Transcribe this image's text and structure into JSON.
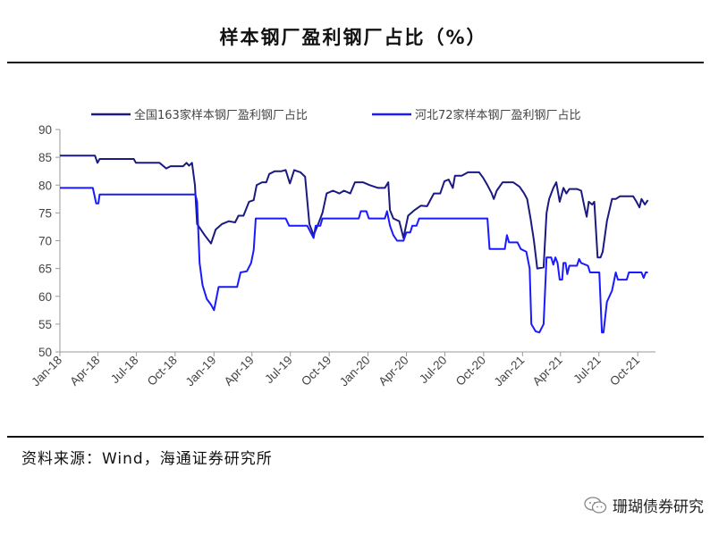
{
  "title": "样本钢厂盈利钢厂占比（%）",
  "source": "资料来源：Wind，海通证券研究所",
  "watermark": {
    "text": "珊瑚债券研究",
    "icon": "wechat-icon"
  },
  "colors": {
    "series1": "#1a1a80",
    "series2": "#1a1aff"
  },
  "chart_data": {
    "type": "line",
    "xlabel": "",
    "ylabel": "",
    "ylim": [
      50,
      90
    ],
    "yticks": [
      50,
      55,
      60,
      65,
      70,
      75,
      80,
      85,
      90
    ],
    "xlim": [
      "2018-01-01",
      "2021-11-12"
    ],
    "xticks": [
      "Jan-18",
      "Apr-18",
      "Jul-18",
      "Oct-18",
      "Jan-19",
      "Apr-19",
      "Jul-19",
      "Oct-19",
      "Jan-20",
      "Apr-20",
      "Jul-20",
      "Oct-20",
      "Jan-21",
      "Apr-21",
      "Jul-21",
      "Oct-21"
    ],
    "xtick_dates": [
      "2018-01-01",
      "2018-04-01",
      "2018-07-01",
      "2018-10-01",
      "2019-01-01",
      "2019-04-01",
      "2019-07-01",
      "2019-10-01",
      "2020-01-01",
      "2020-04-01",
      "2020-07-01",
      "2020-10-01",
      "2021-01-01",
      "2021-04-01",
      "2021-07-01",
      "2021-10-01"
    ],
    "grid": false,
    "legend": "top",
    "series": [
      {
        "name": "全国163家样本钢厂盈利钢厂占比",
        "points": [
          [
            "2018-01-01",
            85.3
          ],
          [
            "2018-03-25",
            85.3
          ],
          [
            "2018-03-31",
            84.0
          ],
          [
            "2018-04-05",
            84.7
          ],
          [
            "2018-06-25",
            84.7
          ],
          [
            "2018-06-30",
            84.0
          ],
          [
            "2018-08-25",
            84.0
          ],
          [
            "2018-09-10",
            83.0
          ],
          [
            "2018-09-20",
            83.4
          ],
          [
            "2018-10-20",
            83.4
          ],
          [
            "2018-10-28",
            84.0
          ],
          [
            "2018-11-03",
            83.5
          ],
          [
            "2018-11-10",
            84.0
          ],
          [
            "2018-11-17",
            80.0
          ],
          [
            "2018-11-22",
            73.0
          ],
          [
            "2018-12-10",
            71.0
          ],
          [
            "2018-12-25",
            69.5
          ],
          [
            "2019-01-05",
            72.0
          ],
          [
            "2019-01-20",
            73.0
          ],
          [
            "2019-02-05",
            73.5
          ],
          [
            "2019-02-20",
            73.3
          ],
          [
            "2019-02-28",
            74.5
          ],
          [
            "2019-03-12",
            74.5
          ],
          [
            "2019-03-25",
            77.0
          ],
          [
            "2019-04-05",
            77.3
          ],
          [
            "2019-04-12",
            80.0
          ],
          [
            "2019-04-25",
            80.5
          ],
          [
            "2019-05-05",
            80.5
          ],
          [
            "2019-05-12",
            82.0
          ],
          [
            "2019-05-25",
            82.5
          ],
          [
            "2019-06-10",
            82.5
          ],
          [
            "2019-06-20",
            82.7
          ],
          [
            "2019-06-30",
            80.3
          ],
          [
            "2019-07-10",
            82.7
          ],
          [
            "2019-07-25",
            82.3
          ],
          [
            "2019-08-05",
            81.5
          ],
          [
            "2019-08-15",
            73.0
          ],
          [
            "2019-08-25",
            71.0
          ],
          [
            "2019-09-05",
            73.0
          ],
          [
            "2019-09-15",
            75.0
          ],
          [
            "2019-09-25",
            78.5
          ],
          [
            "2019-10-10",
            79.0
          ],
          [
            "2019-10-25",
            78.5
          ],
          [
            "2019-11-05",
            79.0
          ],
          [
            "2019-11-20",
            78.5
          ],
          [
            "2019-12-01",
            80.5
          ],
          [
            "2019-12-20",
            80.5
          ],
          [
            "2020-01-05",
            80.0
          ],
          [
            "2020-01-25",
            79.5
          ],
          [
            "2020-02-10",
            79.5
          ],
          [
            "2020-02-18",
            80.5
          ],
          [
            "2020-02-22",
            75.5
          ],
          [
            "2020-03-01",
            74.0
          ],
          [
            "2020-03-15",
            73.5
          ],
          [
            "2020-03-25",
            70.5
          ],
          [
            "2020-04-05",
            74.5
          ],
          [
            "2020-04-20",
            75.5
          ],
          [
            "2020-05-05",
            76.3
          ],
          [
            "2020-05-20",
            76.2
          ],
          [
            "2020-06-05",
            78.5
          ],
          [
            "2020-06-20",
            78.5
          ],
          [
            "2020-06-30",
            80.7
          ],
          [
            "2020-07-10",
            81.0
          ],
          [
            "2020-07-20",
            79.5
          ],
          [
            "2020-07-25",
            81.7
          ],
          [
            "2020-08-10",
            81.7
          ],
          [
            "2020-08-25",
            82.3
          ],
          [
            "2020-09-20",
            82.3
          ],
          [
            "2020-09-30",
            81.3
          ],
          [
            "2020-10-10",
            80.0
          ],
          [
            "2020-10-20",
            78.5
          ],
          [
            "2020-10-25",
            77.5
          ],
          [
            "2020-11-01",
            79.0
          ],
          [
            "2020-11-15",
            80.5
          ],
          [
            "2020-12-10",
            80.5
          ],
          [
            "2020-12-25",
            79.7
          ],
          [
            "2021-01-05",
            78.5
          ],
          [
            "2021-01-12",
            77.5
          ],
          [
            "2021-01-20",
            74.0
          ],
          [
            "2021-01-28",
            70.0
          ],
          [
            "2021-02-05",
            65.0
          ],
          [
            "2021-02-20",
            65.2
          ],
          [
            "2021-02-27",
            75.0
          ],
          [
            "2021-03-05",
            77.5
          ],
          [
            "2021-03-15",
            79.5
          ],
          [
            "2021-03-22",
            80.5
          ],
          [
            "2021-03-30",
            77.0
          ],
          [
            "2021-04-08",
            79.5
          ],
          [
            "2021-04-15",
            78.5
          ],
          [
            "2021-04-22",
            79.3
          ],
          [
            "2021-05-10",
            79.3
          ],
          [
            "2021-05-20",
            79.0
          ],
          [
            "2021-05-28",
            76.0
          ],
          [
            "2021-06-02",
            74.3
          ],
          [
            "2021-06-07",
            77.0
          ],
          [
            "2021-06-15",
            76.5
          ],
          [
            "2021-06-20",
            77.0
          ],
          [
            "2021-06-28",
            67.0
          ],
          [
            "2021-07-05",
            67.0
          ],
          [
            "2021-07-10",
            68.0
          ],
          [
            "2021-07-20",
            73.5
          ],
          [
            "2021-08-01",
            77.5
          ],
          [
            "2021-08-10",
            77.5
          ],
          [
            "2021-08-20",
            78.0
          ],
          [
            "2021-09-10",
            78.0
          ],
          [
            "2021-09-20",
            78.0
          ],
          [
            "2021-09-28",
            77.0
          ],
          [
            "2021-10-05",
            76.0
          ],
          [
            "2021-10-10",
            77.5
          ],
          [
            "2021-10-18",
            76.5
          ],
          [
            "2021-10-25",
            77.3
          ]
        ]
      },
      {
        "name": "河北72家样本钢厂盈利钢厂占比",
        "points": [
          [
            "2018-01-01",
            79.5
          ],
          [
            "2018-03-20",
            79.5
          ],
          [
            "2018-03-28",
            76.7
          ],
          [
            "2018-04-02",
            76.7
          ],
          [
            "2018-04-05",
            78.3
          ],
          [
            "2018-11-18",
            78.3
          ],
          [
            "2018-11-22",
            77.0
          ],
          [
            "2018-11-28",
            66.0
          ],
          [
            "2018-12-05",
            62.0
          ],
          [
            "2018-12-15",
            59.5
          ],
          [
            "2018-12-25",
            58.5
          ],
          [
            "2019-01-01",
            57.5
          ],
          [
            "2019-01-05",
            59.0
          ],
          [
            "2019-01-12",
            61.7
          ],
          [
            "2019-02-25",
            61.7
          ],
          [
            "2019-03-05",
            64.3
          ],
          [
            "2019-03-20",
            64.5
          ],
          [
            "2019-03-30",
            66.0
          ],
          [
            "2019-04-05",
            68.3
          ],
          [
            "2019-04-10",
            74.0
          ],
          [
            "2019-06-20",
            74.0
          ],
          [
            "2019-06-28",
            72.7
          ],
          [
            "2019-08-10",
            72.7
          ],
          [
            "2019-08-18",
            71.5
          ],
          [
            "2019-08-25",
            70.5
          ],
          [
            "2019-08-30",
            72.7
          ],
          [
            "2019-09-10",
            72.7
          ],
          [
            "2019-09-15",
            74.0
          ],
          [
            "2019-12-10",
            74.0
          ],
          [
            "2019-12-15",
            75.3
          ],
          [
            "2019-12-28",
            75.3
          ],
          [
            "2020-01-03",
            74.0
          ],
          [
            "2020-02-10",
            74.0
          ],
          [
            "2020-02-15",
            75.3
          ],
          [
            "2020-02-22",
            72.7
          ],
          [
            "2020-03-01",
            71.0
          ],
          [
            "2020-03-10",
            70.0
          ],
          [
            "2020-03-25",
            70.0
          ],
          [
            "2020-04-01",
            71.5
          ],
          [
            "2020-04-10",
            71.5
          ],
          [
            "2020-04-15",
            72.7
          ],
          [
            "2020-04-25",
            72.7
          ],
          [
            "2020-05-01",
            74.0
          ],
          [
            "2020-10-10",
            74.0
          ],
          [
            "2020-10-15",
            68.5
          ],
          [
            "2020-11-20",
            68.5
          ],
          [
            "2020-11-25",
            71.0
          ],
          [
            "2020-11-30",
            69.7
          ],
          [
            "2020-12-20",
            69.7
          ],
          [
            "2020-12-28",
            68.5
          ],
          [
            "2021-01-10",
            68.0
          ],
          [
            "2021-01-18",
            65.0
          ],
          [
            "2021-01-22",
            55.0
          ],
          [
            "2021-02-01",
            53.7
          ],
          [
            "2021-02-10",
            53.5
          ],
          [
            "2021-02-20",
            55.0
          ],
          [
            "2021-02-27",
            67.0
          ],
          [
            "2021-03-10",
            67.0
          ],
          [
            "2021-03-15",
            65.7
          ],
          [
            "2021-03-20",
            67.0
          ],
          [
            "2021-03-25",
            66.0
          ],
          [
            "2021-03-30",
            63.0
          ],
          [
            "2021-04-05",
            63.0
          ],
          [
            "2021-04-08",
            66.0
          ],
          [
            "2021-04-13",
            66.0
          ],
          [
            "2021-04-17",
            64.0
          ],
          [
            "2021-04-22",
            65.5
          ],
          [
            "2021-05-10",
            65.5
          ],
          [
            "2021-05-15",
            66.7
          ],
          [
            "2021-05-20",
            66.0
          ],
          [
            "2021-06-05",
            65.5
          ],
          [
            "2021-06-10",
            64.3
          ],
          [
            "2021-06-25",
            64.3
          ],
          [
            "2021-07-02",
            64.3
          ],
          [
            "2021-07-08",
            53.5
          ],
          [
            "2021-07-12",
            53.5
          ],
          [
            "2021-07-20",
            59.0
          ],
          [
            "2021-08-01",
            61.0
          ],
          [
            "2021-08-10",
            64.3
          ],
          [
            "2021-08-15",
            63.0
          ],
          [
            "2021-09-05",
            63.0
          ],
          [
            "2021-09-10",
            64.3
          ],
          [
            "2021-10-10",
            64.3
          ],
          [
            "2021-10-15",
            63.3
          ],
          [
            "2021-10-20",
            64.3
          ],
          [
            "2021-10-25",
            64.3
          ]
        ]
      }
    ]
  }
}
